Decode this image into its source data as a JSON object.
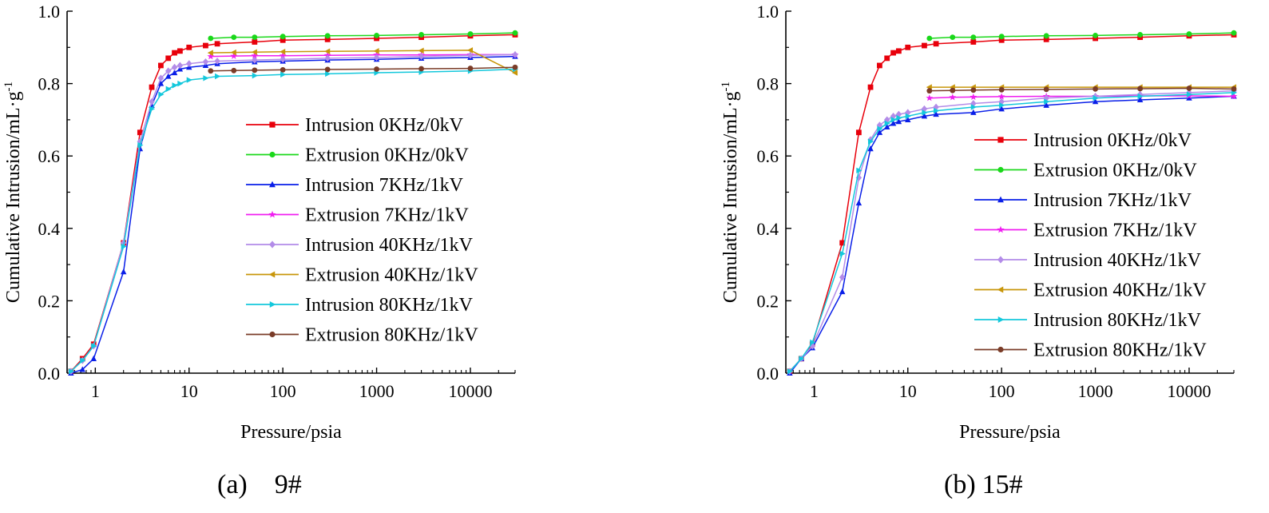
{
  "chart_data": [
    {
      "type": "line",
      "panel": "(a)",
      "sample": "9#",
      "xscale": "log",
      "xlabel": "Pressure/psia",
      "ylabel": "Cumulative Intrusion/mL·g",
      "ylabel_sup": "-1",
      "xlim": [
        0.5,
        30000
      ],
      "ylim": [
        0.0,
        1.0
      ],
      "xticks": [
        1,
        10,
        100,
        1000,
        10000
      ],
      "xtick_labels": [
        "1",
        "10",
        "100",
        "1000",
        "10000"
      ],
      "yticks": [
        0.0,
        0.2,
        0.4,
        0.6,
        0.8,
        1.0
      ],
      "ytick_labels": [
        "0.0",
        "0.2",
        "0.4",
        "0.6",
        "0.8",
        "1.0"
      ],
      "legend_position": "center-right",
      "series": [
        {
          "name": "Intrusion 0KHz/0kV",
          "color": "#e8000b",
          "marker": "square",
          "x": [
            0.55,
            0.73,
            0.96,
            2,
            3,
            4,
            5,
            6,
            7,
            8,
            10,
            15,
            20,
            50,
            100,
            300,
            1000,
            3000,
            10000,
            30000
          ],
          "y": [
            0.005,
            0.04,
            0.08,
            0.36,
            0.665,
            0.79,
            0.85,
            0.87,
            0.885,
            0.89,
            0.9,
            0.905,
            0.91,
            0.915,
            0.92,
            0.922,
            0.925,
            0.928,
            0.932,
            0.935
          ]
        },
        {
          "name": "Extrusion 0KHz/0kV",
          "color": "#1ad81a",
          "marker": "circle",
          "x": [
            17,
            30,
            50,
            100,
            300,
            1000,
            3000,
            10000,
            30000
          ],
          "y": [
            0.925,
            0.928,
            0.928,
            0.93,
            0.932,
            0.933,
            0.935,
            0.937,
            0.94
          ]
        },
        {
          "name": "Intrusion 7KHz/1kV",
          "color": "#0a1fe8",
          "marker": "triangle-up",
          "x": [
            0.55,
            0.73,
            0.96,
            2,
            3,
            4,
            5,
            6,
            7,
            8,
            10,
            15,
            20,
            50,
            100,
            300,
            1000,
            3000,
            10000,
            30000
          ],
          "y": [
            0.0,
            0.01,
            0.04,
            0.28,
            0.62,
            0.74,
            0.8,
            0.82,
            0.83,
            0.84,
            0.845,
            0.85,
            0.855,
            0.86,
            0.862,
            0.865,
            0.867,
            0.87,
            0.872,
            0.875
          ]
        },
        {
          "name": "Extrusion 7KHz/1kV",
          "color": "#f01ef0",
          "marker": "star",
          "x": [
            17,
            30,
            50,
            100,
            300,
            1000,
            3000,
            10000,
            30000
          ],
          "y": [
            0.875,
            0.876,
            0.877,
            0.877,
            0.878,
            0.879,
            0.879,
            0.88,
            0.88
          ]
        },
        {
          "name": "Intrusion 40KHz/1kV",
          "color": "#b38ce8",
          "marker": "diamond",
          "x": [
            0.55,
            0.73,
            0.96,
            2,
            3,
            4,
            5,
            6,
            7,
            8,
            10,
            15,
            20,
            50,
            100,
            300,
            1000,
            3000,
            10000,
            30000
          ],
          "y": [
            0.005,
            0.035,
            0.075,
            0.36,
            0.64,
            0.75,
            0.815,
            0.835,
            0.845,
            0.85,
            0.855,
            0.86,
            0.862,
            0.865,
            0.867,
            0.87,
            0.872,
            0.875,
            0.878,
            0.88
          ]
        },
        {
          "name": "Extrusion 40KHz/1kV",
          "color": "#c8960a",
          "marker": "triangle-left",
          "x": [
            17,
            30,
            50,
            100,
            300,
            1000,
            3000,
            10000,
            30000
          ],
          "y": [
            0.885,
            0.886,
            0.887,
            0.888,
            0.889,
            0.89,
            0.891,
            0.892,
            0.83
          ]
        },
        {
          "name": "Intrusion 80KHz/1kV",
          "color": "#14c8dc",
          "marker": "triangle-right",
          "x": [
            0.55,
            0.73,
            0.96,
            2,
            3,
            4,
            5,
            6,
            7,
            8,
            10,
            15,
            20,
            50,
            100,
            300,
            1000,
            3000,
            10000,
            30000
          ],
          "y": [
            0.005,
            0.035,
            0.075,
            0.35,
            0.63,
            0.73,
            0.77,
            0.785,
            0.795,
            0.8,
            0.81,
            0.815,
            0.82,
            0.822,
            0.825,
            0.827,
            0.83,
            0.832,
            0.835,
            0.84
          ]
        },
        {
          "name": "Extrusion 80KHz/1kV",
          "color": "#7a3c28",
          "marker": "circle",
          "x": [
            17,
            30,
            50,
            100,
            300,
            1000,
            3000,
            10000,
            30000
          ],
          "y": [
            0.835,
            0.836,
            0.837,
            0.838,
            0.839,
            0.84,
            0.841,
            0.842,
            0.845
          ]
        }
      ]
    },
    {
      "type": "line",
      "panel": "(b)",
      "sample": "15#",
      "xscale": "log",
      "xlabel": "Pressure/psia",
      "ylabel": "Cumulative Intrusion/mL·g",
      "ylabel_sup": "-1",
      "xlim": [
        0.5,
        30000
      ],
      "ylim": [
        0.0,
        1.0
      ],
      "xticks": [
        1,
        10,
        100,
        1000,
        10000
      ],
      "xtick_labels": [
        "1",
        "10",
        "100",
        "1000",
        "10000"
      ],
      "yticks": [
        0.0,
        0.2,
        0.4,
        0.6,
        0.8,
        1.0
      ],
      "ytick_labels": [
        "0.0",
        "0.2",
        "0.4",
        "0.6",
        "0.8",
        "1.0"
      ],
      "legend_position": "lower-right",
      "series": [
        {
          "name": "Intrusion 0KHz/0kV",
          "color": "#e8000b",
          "marker": "square",
          "x": [
            0.55,
            0.73,
            0.96,
            2,
            3,
            4,
            5,
            6,
            7,
            8,
            10,
            15,
            20,
            50,
            100,
            300,
            1000,
            3000,
            10000,
            30000
          ],
          "y": [
            0.005,
            0.04,
            0.08,
            0.36,
            0.665,
            0.79,
            0.85,
            0.87,
            0.885,
            0.89,
            0.9,
            0.905,
            0.91,
            0.915,
            0.92,
            0.922,
            0.925,
            0.928,
            0.932,
            0.935
          ]
        },
        {
          "name": "Extrusion 0KHz/0kV",
          "color": "#1ad81a",
          "marker": "circle",
          "x": [
            17,
            30,
            50,
            100,
            300,
            1000,
            3000,
            10000,
            30000
          ],
          "y": [
            0.925,
            0.928,
            0.928,
            0.93,
            0.932,
            0.933,
            0.935,
            0.937,
            0.94
          ]
        },
        {
          "name": "Intrusion 7KHz/1kV",
          "color": "#0a1fe8",
          "marker": "triangle-up",
          "x": [
            0.55,
            0.73,
            0.96,
            2,
            3,
            4,
            5,
            6,
            7,
            8,
            10,
            15,
            20,
            50,
            100,
            300,
            1000,
            3000,
            10000,
            30000
          ],
          "y": [
            0.0,
            0.04,
            0.07,
            0.225,
            0.47,
            0.62,
            0.665,
            0.68,
            0.69,
            0.695,
            0.7,
            0.71,
            0.715,
            0.72,
            0.73,
            0.74,
            0.75,
            0.755,
            0.76,
            0.765
          ]
        },
        {
          "name": "Extrusion 7KHz/1kV",
          "color": "#f01ef0",
          "marker": "star",
          "x": [
            17,
            30,
            50,
            100,
            300,
            1000,
            3000,
            10000,
            30000
          ],
          "y": [
            0.76,
            0.762,
            0.763,
            0.764,
            0.765,
            0.765,
            0.766,
            0.766,
            0.765
          ]
        },
        {
          "name": "Intrusion 40KHz/1kV",
          "color": "#b38ce8",
          "marker": "diamond",
          "x": [
            0.55,
            0.73,
            0.96,
            2,
            3,
            4,
            5,
            6,
            7,
            8,
            10,
            15,
            20,
            50,
            100,
            300,
            1000,
            3000,
            10000,
            30000
          ],
          "y": [
            0.005,
            0.04,
            0.075,
            0.265,
            0.54,
            0.645,
            0.685,
            0.7,
            0.71,
            0.715,
            0.72,
            0.73,
            0.735,
            0.745,
            0.75,
            0.76,
            0.765,
            0.77,
            0.775,
            0.78
          ]
        },
        {
          "name": "Extrusion 40KHz/1kV",
          "color": "#c8960a",
          "marker": "triangle-left",
          "x": [
            17,
            30,
            50,
            100,
            300,
            1000,
            3000,
            10000,
            30000
          ],
          "y": [
            0.79,
            0.79,
            0.79,
            0.79,
            0.79,
            0.79,
            0.79,
            0.79,
            0.79
          ]
        },
        {
          "name": "Intrusion 80KHz/1kV",
          "color": "#14c8dc",
          "marker": "triangle-right",
          "x": [
            0.55,
            0.73,
            0.96,
            2,
            3,
            4,
            5,
            6,
            7,
            8,
            10,
            15,
            20,
            50,
            100,
            300,
            1000,
            3000,
            10000,
            30000
          ],
          "y": [
            0.005,
            0.04,
            0.085,
            0.33,
            0.56,
            0.64,
            0.675,
            0.69,
            0.7,
            0.705,
            0.71,
            0.72,
            0.725,
            0.735,
            0.74,
            0.75,
            0.76,
            0.765,
            0.77,
            0.775
          ]
        },
        {
          "name": "Extrusion 80KHz/1kV",
          "color": "#7a3c28",
          "marker": "circle",
          "x": [
            17,
            30,
            50,
            100,
            300,
            1000,
            3000,
            10000,
            30000
          ],
          "y": [
            0.78,
            0.781,
            0.782,
            0.783,
            0.784,
            0.785,
            0.786,
            0.787,
            0.785
          ]
        }
      ]
    }
  ],
  "captions": {
    "a": {
      "letter": "(a)",
      "sample": "9#"
    },
    "b": {
      "letter": "(b)",
      "sample": "15#"
    }
  }
}
